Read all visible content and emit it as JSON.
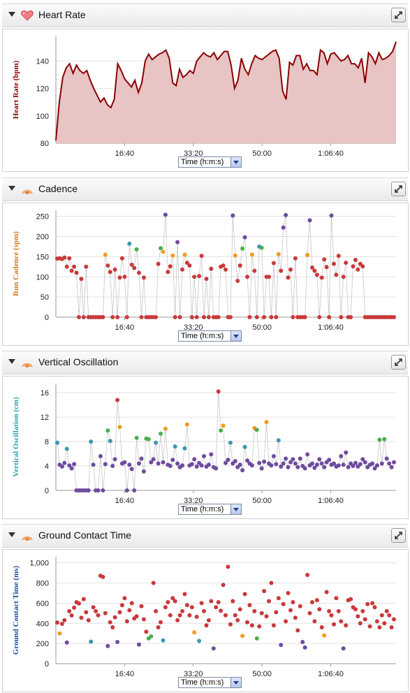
{
  "x_ticks": [
    "16:40",
    "33:20",
    "50:00",
    "1:06:40"
  ],
  "x_tick_seconds": [
    1000,
    2000,
    3000,
    4000
  ],
  "x_range_seconds": [
    0,
    4950
  ],
  "time_selector": "Time (h:m:s)",
  "colors": {
    "hr_line": "#8b0000",
    "hr_fill": "#e8c4c4",
    "red": "#c9393b",
    "orange": "#f39b1e",
    "green": "#4cae4c",
    "blue": "#3a97b5",
    "purple": "#6f4b9f"
  },
  "panels": [
    {
      "title": "Heart Rate",
      "icon": "heart-icon",
      "ylabel": "Heart Rate (bpm)",
      "ylabel_color": "#8b0000"
    },
    {
      "title": "Cadence",
      "icon": "running-sensor-icon",
      "ylabel": "Run Cadence (spm)",
      "ylabel_color": "#d4781c"
    },
    {
      "title": "Vertical Oscillation",
      "icon": "running-sensor-icon",
      "ylabel": "Vertical Oscillation (cm)",
      "ylabel_color": "#2aa5b0"
    },
    {
      "title": "Ground Contact Time",
      "icon": "running-sensor-icon",
      "ylabel": "Ground Contact Time (ms)",
      "ylabel_color": "#1f4f9a"
    }
  ],
  "chart_data": [
    {
      "type": "area",
      "ylabel": "Heart Rate (bpm)",
      "yticks": [
        "80",
        "100",
        "120",
        "140"
      ],
      "ylim": [
        80,
        158
      ],
      "grid": true,
      "x": [
        0,
        50,
        100,
        150,
        200,
        250,
        300,
        350,
        400,
        450,
        500,
        550,
        600,
        650,
        700,
        750,
        800,
        850,
        900,
        950,
        1000,
        1050,
        1100,
        1150,
        1200,
        1250,
        1300,
        1350,
        1400,
        1450,
        1500,
        1550,
        1600,
        1650,
        1700,
        1750,
        1800,
        1850,
        1900,
        1950,
        2000,
        2050,
        2100,
        2150,
        2200,
        2250,
        2300,
        2350,
        2400,
        2450,
        2500,
        2550,
        2600,
        2650,
        2700,
        2750,
        2800,
        2850,
        2900,
        2950,
        3000,
        3050,
        3100,
        3150,
        3200,
        3250,
        3300,
        3350,
        3400,
        3450,
        3500,
        3550,
        3600,
        3650,
        3700,
        3750,
        3800,
        3850,
        3900,
        3950,
        4000,
        4050,
        4100,
        4150,
        4200,
        4250,
        4300,
        4350,
        4400,
        4450,
        4500,
        4550,
        4600,
        4650,
        4700,
        4750,
        4800,
        4850,
        4900,
        4950
      ],
      "y": [
        82,
        110,
        128,
        135,
        138,
        131,
        137,
        133,
        131,
        133,
        126,
        120,
        115,
        110,
        113,
        108,
        106,
        112,
        138,
        133,
        127,
        124,
        121,
        126,
        117,
        124,
        140,
        145,
        141,
        143,
        145,
        146,
        148,
        142,
        124,
        122,
        134,
        128,
        130,
        133,
        131,
        140,
        143,
        146,
        144,
        143,
        146,
        141,
        144,
        147,
        147,
        137,
        120,
        126,
        142,
        134,
        130,
        138,
        144,
        142,
        141,
        143,
        145,
        147,
        148,
        142,
        118,
        112,
        139,
        137,
        144,
        144,
        134,
        138,
        133,
        133,
        130,
        148,
        146,
        138,
        145,
        146,
        143,
        140,
        141,
        144,
        138,
        138,
        135,
        142,
        124,
        146,
        143,
        138,
        146,
        141,
        142,
        144,
        147,
        154
      ]
    },
    {
      "type": "scatter",
      "ylabel": "Run Cadence (spm)",
      "yticks": [
        "0",
        "50",
        "100",
        "150",
        "200",
        "250"
      ],
      "ylim": [
        0,
        265
      ],
      "grid": true,
      "color_zones": {
        "0-153": "red",
        "153-164": "orange",
        "164-174": "green",
        "174-183": "blue",
        "183+": "purple"
      },
      "x": [
        20,
        55,
        90,
        125,
        160,
        195,
        230,
        265,
        300,
        335,
        370,
        405,
        440,
        475,
        510,
        545,
        580,
        615,
        650,
        685,
        720,
        755,
        790,
        825,
        860,
        895,
        930,
        965,
        1000,
        1035,
        1070,
        1105,
        1140,
        1175,
        1210,
        1245,
        1280,
        1315,
        1350,
        1385,
        1420,
        1455,
        1490,
        1525,
        1560,
        1595,
        1630,
        1665,
        1700,
        1735,
        1770,
        1805,
        1840,
        1875,
        1910,
        1945,
        1980,
        2015,
        2050,
        2085,
        2120,
        2155,
        2190,
        2225,
        2260,
        2295,
        2330,
        2365,
        2400,
        2435,
        2470,
        2505,
        2540,
        2575,
        2610,
        2645,
        2680,
        2715,
        2750,
        2785,
        2820,
        2855,
        2890,
        2925,
        2960,
        2995,
        3030,
        3065,
        3100,
        3135,
        3170,
        3205,
        3240,
        3275,
        3310,
        3345,
        3380,
        3415,
        3450,
        3485,
        3520,
        3555,
        3590,
        3625,
        3660,
        3695,
        3730,
        3765,
        3800,
        3835,
        3870,
        3905,
        3940,
        3975,
        4010,
        4045,
        4080,
        4115,
        4150,
        4185,
        4220,
        4255,
        4290,
        4325,
        4360,
        4395,
        4430,
        4465,
        4500,
        4535,
        4570,
        4605,
        4640,
        4675,
        4710,
        4745,
        4780,
        4815,
        4850,
        4885,
        4920
      ],
      "y": [
        145,
        146,
        144,
        148,
        125,
        146,
        115,
        125,
        110,
        0,
        95,
        0,
        125,
        0,
        0,
        0,
        0,
        0,
        0,
        0,
        155,
        128,
        112,
        0,
        118,
        0,
        98,
        146,
        100,
        0,
        182,
        130,
        122,
        168,
        110,
        0,
        98,
        0,
        0,
        0,
        0,
        0,
        132,
        171,
        162,
        254,
        112,
        126,
        153,
        0,
        186,
        0,
        118,
        155,
        135,
        128,
        0,
        100,
        0,
        102,
        152,
        0,
        95,
        0,
        120,
        0,
        0,
        0,
        125,
        128,
        118,
        0,
        0,
        252,
        153,
        90,
        128,
        170,
        198,
        100,
        0,
        155,
        115,
        0,
        175,
        172,
        0,
        100,
        100,
        0,
        134,
        0,
        156,
        115,
        222,
        253,
        98,
        118,
        0,
        146,
        0,
        0,
        0,
        0,
        154,
        240,
        123,
        115,
        105,
        0,
        98,
        143,
        124,
        0,
        252,
        132,
        105,
        152,
        0,
        100,
        135,
        0,
        0,
        126,
        142,
        118,
        132,
        126,
        0,
        0,
        0,
        0,
        0,
        0,
        0,
        0,
        0,
        0,
        0,
        0,
        0
      ]
    },
    {
      "type": "scatter",
      "ylabel": "Vertical Oscillation (cm)",
      "yticks": [
        "0",
        "4",
        "8",
        "12",
        "16"
      ],
      "ylim": [
        0,
        17.5
      ],
      "grid": true,
      "color_zones": {
        "0-6.5": "purple",
        "6.5-8.3": "blue",
        "8.3-10": "green",
        "10-11.9": "orange",
        "11.9+": "red"
      },
      "x": [
        20,
        55,
        90,
        125,
        160,
        195,
        230,
        265,
        300,
        335,
        370,
        405,
        440,
        475,
        510,
        545,
        580,
        615,
        650,
        685,
        720,
        755,
        790,
        825,
        860,
        895,
        930,
        965,
        1000,
        1035,
        1070,
        1105,
        1140,
        1175,
        1210,
        1245,
        1280,
        1315,
        1350,
        1385,
        1420,
        1455,
        1490,
        1525,
        1560,
        1595,
        1630,
        1665,
        1700,
        1735,
        1770,
        1805,
        1840,
        1875,
        1910,
        1945,
        1980,
        2015,
        2050,
        2085,
        2120,
        2155,
        2190,
        2225,
        2260,
        2295,
        2330,
        2365,
        2400,
        2435,
        2470,
        2505,
        2540,
        2575,
        2610,
        2645,
        2680,
        2715,
        2750,
        2785,
        2820,
        2855,
        2890,
        2925,
        2960,
        2995,
        3030,
        3065,
        3100,
        3135,
        3170,
        3205,
        3240,
        3275,
        3310,
        3345,
        3380,
        3415,
        3450,
        3485,
        3520,
        3555,
        3590,
        3625,
        3660,
        3695,
        3730,
        3765,
        3800,
        3835,
        3870,
        3905,
        3940,
        3975,
        4010,
        4045,
        4080,
        4115,
        4150,
        4185,
        4220,
        4255,
        4290,
        4325,
        4360,
        4395,
        4430,
        4465,
        4500,
        4535,
        4570,
        4605,
        4640,
        4675,
        4710,
        4745,
        4780,
        4815,
        4850,
        4885,
        4920
      ],
      "y": [
        7.8,
        4.2,
        3.9,
        4.5,
        6.8,
        4.1,
        3.6,
        4.3,
        0,
        0,
        0,
        0,
        0,
        0,
        8.0,
        4.2,
        0,
        0,
        5.6,
        0,
        4.3,
        9.8,
        8.1,
        4.0,
        5.1,
        14.8,
        10.4,
        4.4,
        4.6,
        0,
        4.2,
        3.5,
        0,
        8.6,
        4.4,
        5.2,
        3.1,
        8.5,
        8.4,
        4.6,
        5.1,
        7.8,
        4.4,
        9.3,
        4.6,
        10.1,
        4.2,
        4.0,
        5.0,
        7.2,
        4.4,
        3.8,
        4.1,
        6.9,
        10.8,
        4.1,
        4.3,
        5.1,
        3.9,
        4.5,
        4.1,
        5.6,
        3.9,
        4.2,
        5.9,
        3.8,
        3.6,
        16.2,
        9.8,
        10.6,
        4.5,
        5.0,
        7.8,
        4.4,
        4.8,
        3.8,
        4.2,
        3.3,
        7.1,
        4.9,
        4.4,
        4.1,
        10.2,
        9.9,
        4.5,
        3.6,
        4.7,
        11.2,
        4.4,
        4.1,
        5.6,
        4.3,
        8.2,
        3.9,
        4.4,
        5.2,
        3.8,
        4.6,
        5.1,
        4.4,
        3.8,
        5.2,
        4.0,
        3.6,
        5.9,
        4.1,
        4.4,
        3.7,
        4.2,
        5.1,
        4.4,
        3.8,
        4.6,
        5.0,
        4.2,
        4.4,
        3.9,
        4.1,
        5.6,
        4.2,
        6.2,
        3.8,
        4.4,
        4.0,
        4.5,
        3.9,
        4.3,
        5.1,
        4.6,
        3.8,
        4.2,
        4.4,
        3.6,
        4.1,
        8.3,
        4.4,
        8.4,
        5.2,
        4.4,
        3.8,
        4.6
      ]
    },
    {
      "type": "scatter",
      "ylabel": "Ground Contact Time (ms)",
      "yticks": [
        "0",
        "200",
        "400",
        "600",
        "800",
        "1,000"
      ],
      "ylim": [
        0,
        1060
      ],
      "grid": true,
      "color_zones": {
        "0-218": "purple",
        "218-250": "blue",
        "250-275": "green",
        "275-315": "orange",
        "315+": "red"
      },
      "x": [
        20,
        55,
        90,
        125,
        160,
        195,
        230,
        265,
        300,
        335,
        370,
        405,
        440,
        475,
        510,
        545,
        580,
        615,
        650,
        685,
        720,
        755,
        790,
        825,
        860,
        895,
        930,
        965,
        1000,
        1035,
        1070,
        1105,
        1140,
        1175,
        1210,
        1245,
        1280,
        1315,
        1350,
        1385,
        1420,
        1455,
        1490,
        1525,
        1560,
        1595,
        1630,
        1665,
        1700,
        1735,
        1770,
        1805,
        1840,
        1875,
        1910,
        1945,
        1980,
        2015,
        2050,
        2085,
        2120,
        2155,
        2190,
        2225,
        2260,
        2295,
        2330,
        2365,
        2400,
        2435,
        2470,
        2505,
        2540,
        2575,
        2610,
        2645,
        2680,
        2715,
        2750,
        2785,
        2820,
        2855,
        2890,
        2925,
        2960,
        2995,
        3030,
        3065,
        3100,
        3135,
        3170,
        3205,
        3240,
        3275,
        3310,
        3345,
        3380,
        3415,
        3450,
        3485,
        3520,
        3555,
        3590,
        3625,
        3660,
        3695,
        3730,
        3765,
        3800,
        3835,
        3870,
        3905,
        3940,
        3975,
        4010,
        4045,
        4080,
        4115,
        4150,
        4185,
        4220,
        4255,
        4290,
        4325,
        4360,
        4395,
        4430,
        4465,
        4500,
        4535,
        4570,
        4605,
        4640,
        4675,
        4710,
        4745,
        4780,
        4815,
        4850,
        4885,
        4920
      ],
      "y": [
        408,
        300,
        395,
        430,
        210,
        520,
        478,
        555,
        610,
        598,
        455,
        640,
        510,
        430,
        218,
        560,
        520,
        480,
        872,
        860,
        500,
        175,
        410,
        360,
        460,
        215,
        510,
        580,
        650,
        420,
        530,
        600,
        448,
        470,
        190,
        570,
        440,
        316,
        250,
        270,
        800,
        520,
        360,
        410,
        230,
        560,
        610,
        480,
        650,
        620,
        430,
        480,
        520,
        690,
        580,
        480,
        560,
        310,
        465,
        225,
        600,
        520,
        380,
        430,
        620,
        150,
        560,
        610,
        525,
        780,
        480,
        960,
        390,
        620,
        480,
        430,
        540,
        275,
        690,
        410,
        580,
        380,
        520,
        250,
        370,
        500,
        720,
        470,
        620,
        800,
        380,
        510,
        650,
        185,
        590,
        420,
        700,
        530,
        610,
        455,
        330,
        570,
        215,
        160,
        880,
        500,
        610,
        420,
        630,
        540,
        360,
        280,
        710,
        520,
        480,
        390,
        650,
        520,
        420,
        150,
        380,
        630,
        640,
        560,
        540,
        470,
        400,
        520,
        440,
        590,
        370,
        600,
        560,
        420,
        360,
        480,
        400,
        520,
        480,
        360,
        440
      ]
    }
  ]
}
